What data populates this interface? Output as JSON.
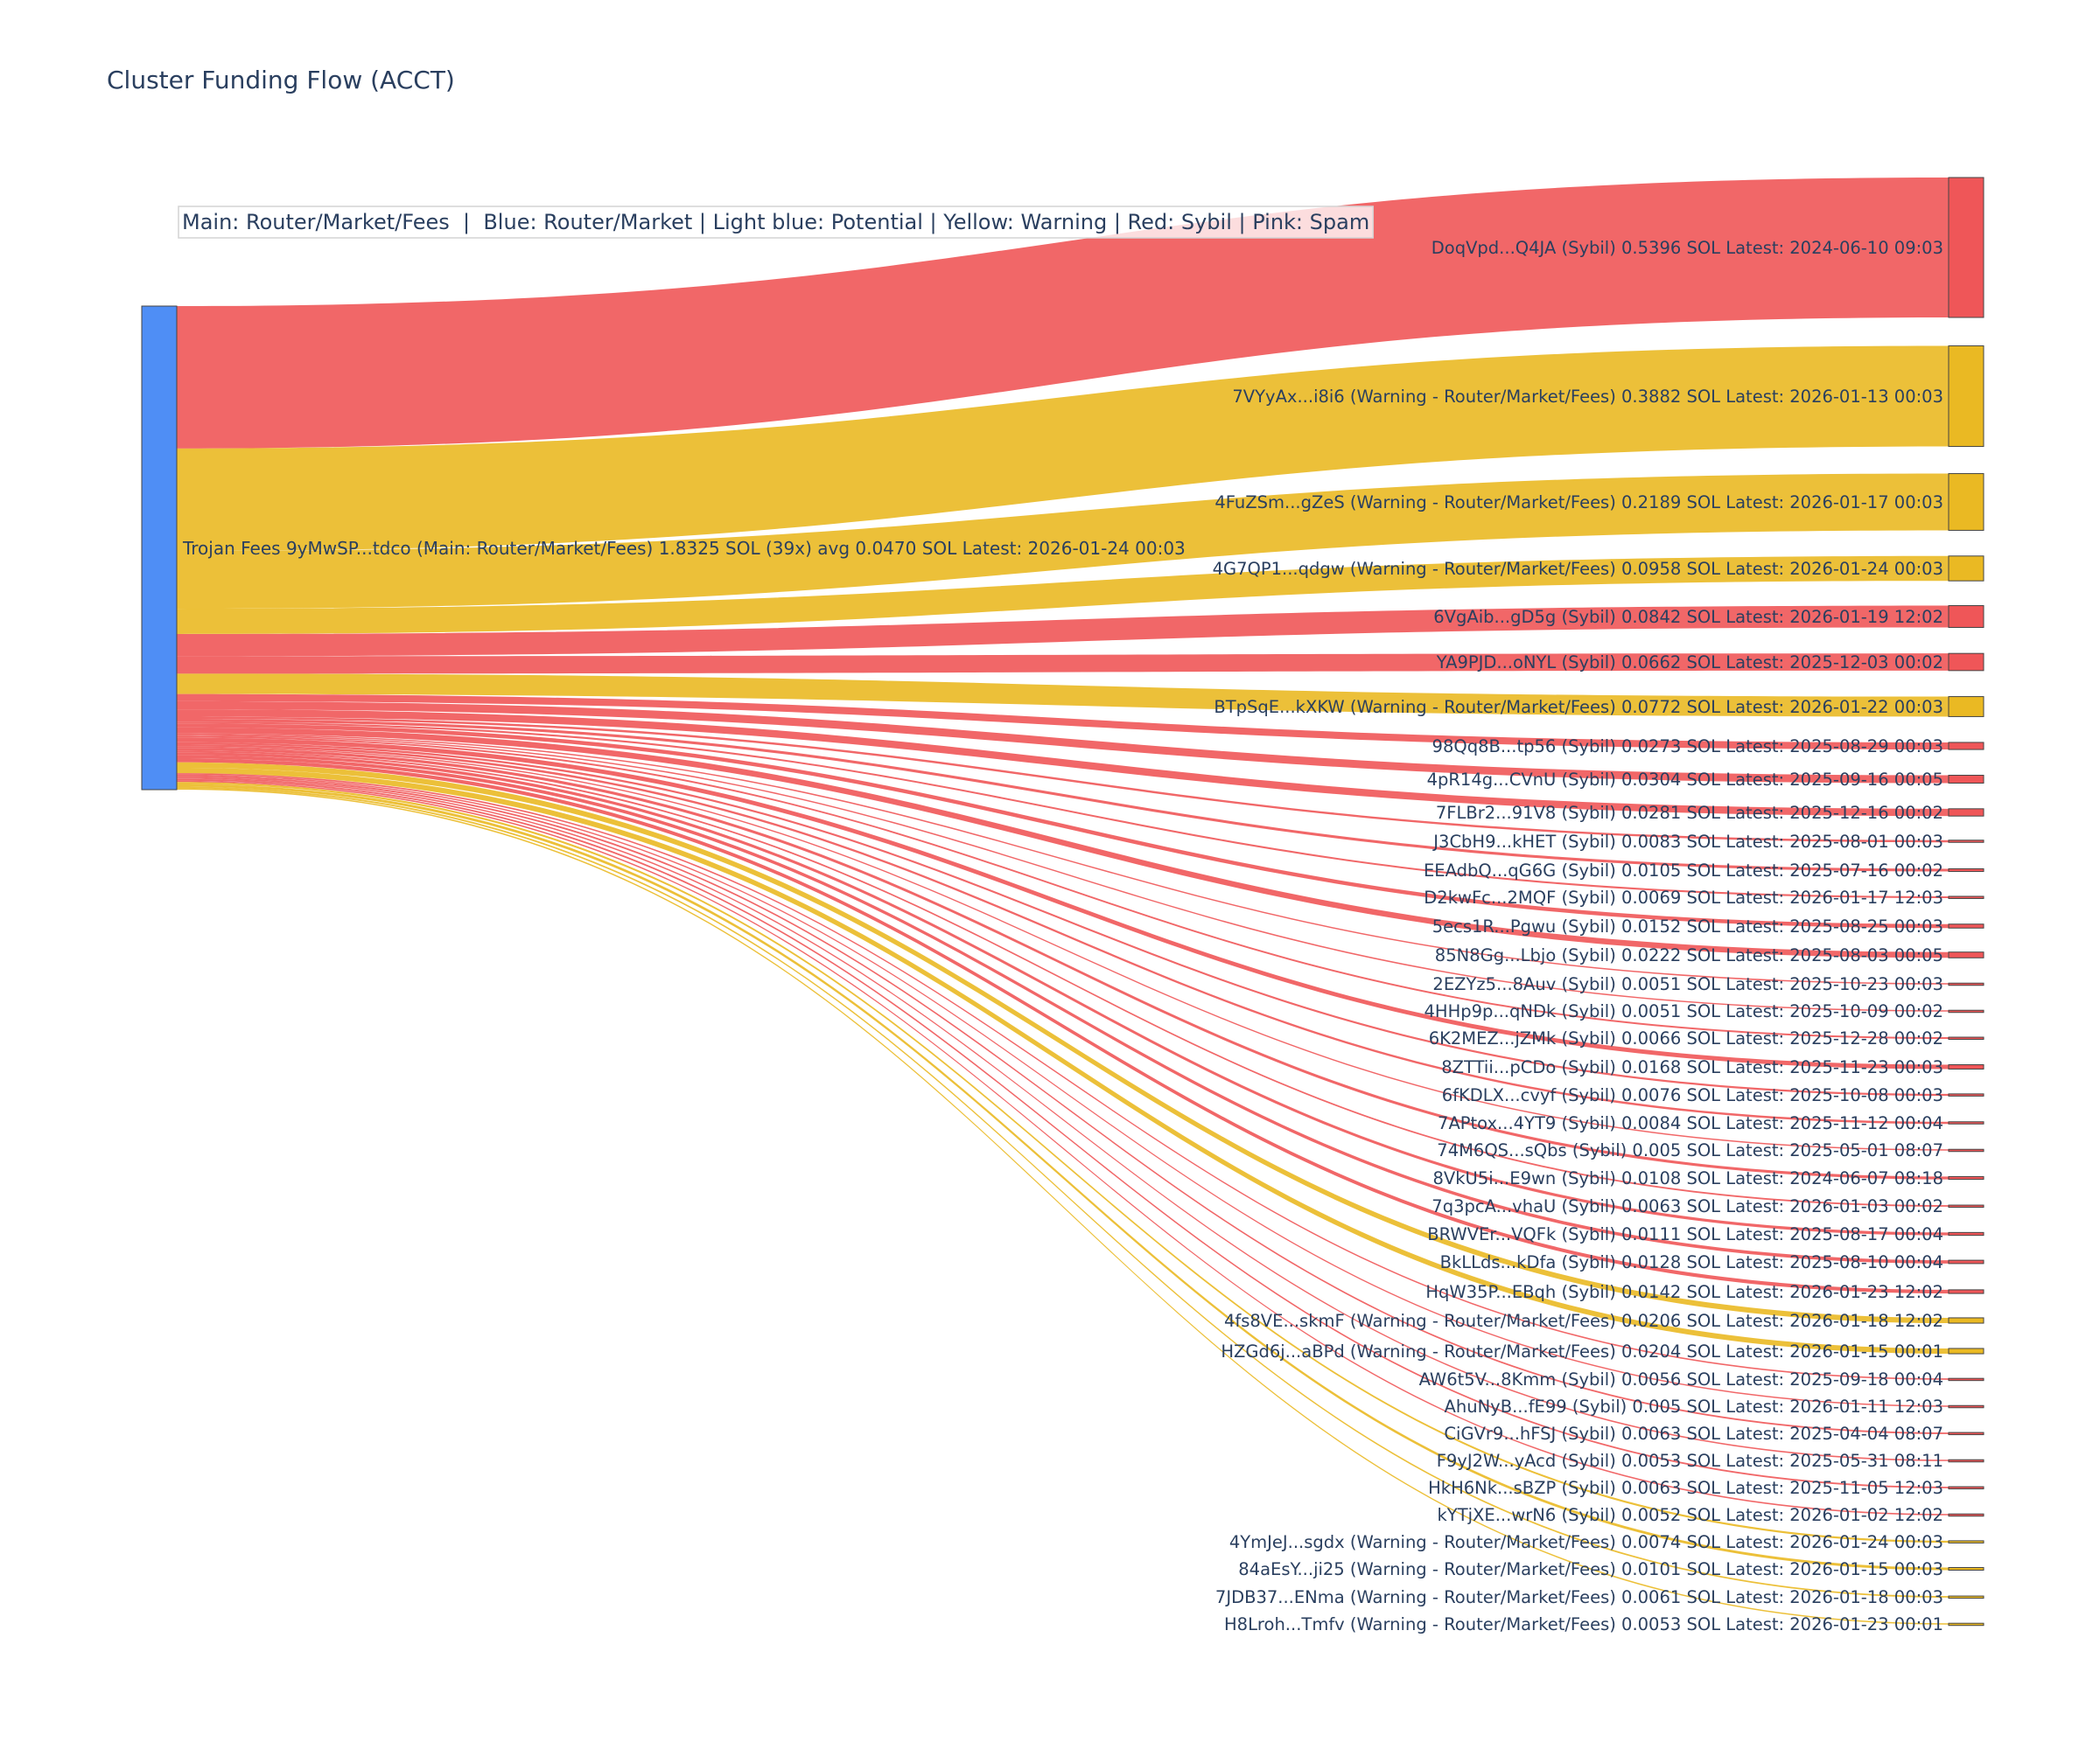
{
  "title": "Cluster Funding Flow (ACCT)",
  "legend_note": "Main: Router/Market/Fees  |  Blue: Router/Market | Light blue: Potential | Yellow: Warning | Red: Sybil | Pink: Spam",
  "colors": {
    "source": "#4f8ef5",
    "sybil": "#ef5658",
    "warning": "#eab923",
    "background": "#ffffff",
    "text": "#2a3f5f"
  },
  "chart_data": {
    "type": "sankey",
    "source": {
      "label": "Trojan Fees 9yMwSP...tdco (Main: Router/Market/Fees) 1.8325 SOL (39x) avg 0.0470 SOL Latest: 2026-01-24 00:03",
      "value": 1.8325,
      "count": 39
    },
    "targets": [
      {
        "label": "DoqVpd...Q4JA (Sybil) 0.5396 SOL Latest: 2024-06-10 09:03",
        "value": 0.5396,
        "type": "sybil"
      },
      {
        "label": "7VYyAx...i8i6 (Warning - Router/Market/Fees) 0.3882 SOL Latest: 2026-01-13 00:03",
        "value": 0.3882,
        "type": "warning"
      },
      {
        "label": "4FuZSm...gZeS (Warning - Router/Market/Fees) 0.2189 SOL Latest: 2026-01-17 00:03",
        "value": 0.2189,
        "type": "warning"
      },
      {
        "label": "4G7QP1...qdgw (Warning - Router/Market/Fees) 0.0958 SOL Latest: 2026-01-24 00:03",
        "value": 0.0958,
        "type": "warning"
      },
      {
        "label": "6VgAib...gD5g (Sybil) 0.0842 SOL Latest: 2026-01-19 12:02",
        "value": 0.0842,
        "type": "sybil"
      },
      {
        "label": "YA9PJD...oNYL (Sybil) 0.0662 SOL Latest: 2025-12-03 00:02",
        "value": 0.0662,
        "type": "sybil"
      },
      {
        "label": "BTpSqE...kXKW (Warning - Router/Market/Fees) 0.0772 SOL Latest: 2026-01-22 00:03",
        "value": 0.0772,
        "type": "warning"
      },
      {
        "label": "98Qq8B...tp56 (Sybil) 0.0273 SOL Latest: 2025-08-29 00:03",
        "value": 0.0273,
        "type": "sybil"
      },
      {
        "label": "4pR14g...CVnU (Sybil) 0.0304 SOL Latest: 2025-09-16 00:05",
        "value": 0.0304,
        "type": "sybil"
      },
      {
        "label": "7FLBr2...91V8 (Sybil) 0.0281 SOL Latest: 2025-12-16 00:02",
        "value": 0.0281,
        "type": "sybil"
      },
      {
        "label": "J3CbH9...kHET (Sybil) 0.0083 SOL Latest: 2025-08-01 00:03",
        "value": 0.0083,
        "type": "sybil"
      },
      {
        "label": "EEAdbQ...qG6G (Sybil) 0.0105 SOL Latest: 2025-07-16 00:02",
        "value": 0.0105,
        "type": "sybil"
      },
      {
        "label": "D2kwFc...2MQF (Sybil) 0.0069 SOL Latest: 2026-01-17 12:03",
        "value": 0.0069,
        "type": "sybil"
      },
      {
        "label": "5ecs1R...Pgwu (Sybil) 0.0152 SOL Latest: 2025-08-25 00:03",
        "value": 0.0152,
        "type": "sybil"
      },
      {
        "label": "85N8Gg...Lbjo (Sybil) 0.0222 SOL Latest: 2025-08-03 00:05",
        "value": 0.0222,
        "type": "sybil"
      },
      {
        "label": "2EZYz5...8Auv (Sybil) 0.0051 SOL Latest: 2025-10-23 00:03",
        "value": 0.0051,
        "type": "sybil"
      },
      {
        "label": "4HHp9p...qNDk (Sybil) 0.0051 SOL Latest: 2025-10-09 00:02",
        "value": 0.0051,
        "type": "sybil"
      },
      {
        "label": "6K2MEZ...jZMk (Sybil) 0.0066 SOL Latest: 2025-12-28 00:02",
        "value": 0.0066,
        "type": "sybil"
      },
      {
        "label": "8ZTTii...pCDo (Sybil) 0.0168 SOL Latest: 2025-11-23 00:03",
        "value": 0.0168,
        "type": "sybil"
      },
      {
        "label": "6fKDLX...cvyf (Sybil) 0.0076 SOL Latest: 2025-10-08 00:03",
        "value": 0.0076,
        "type": "sybil"
      },
      {
        "label": "7APtox...4YT9 (Sybil) 0.0084 SOL Latest: 2025-11-12 00:04",
        "value": 0.0084,
        "type": "sybil"
      },
      {
        "label": "74M6QS...sQbs (Sybil) 0.005 SOL Latest: 2025-05-01 08:07",
        "value": 0.005,
        "type": "sybil"
      },
      {
        "label": "8VkU5i...E9wn (Sybil) 0.0108 SOL Latest: 2024-06-07 08:18",
        "value": 0.0108,
        "type": "sybil"
      },
      {
        "label": "7q3pcA...vhaU (Sybil) 0.0063 SOL Latest: 2026-01-03 00:02",
        "value": 0.0063,
        "type": "sybil"
      },
      {
        "label": "BRWVEr...VQFk (Sybil) 0.0111 SOL Latest: 2025-08-17 00:04",
        "value": 0.0111,
        "type": "sybil"
      },
      {
        "label": "BkLLds...kDfa (Sybil) 0.0128 SOL Latest: 2025-08-10 00:04",
        "value": 0.0128,
        "type": "sybil"
      },
      {
        "label": "HqW35P...EBqh (Sybil) 0.0142 SOL Latest: 2026-01-23 12:02",
        "value": 0.0142,
        "type": "sybil"
      },
      {
        "label": "4fs8VE...skmF (Warning - Router/Market/Fees) 0.0206 SOL Latest: 2026-01-18 12:02",
        "value": 0.0206,
        "type": "warning"
      },
      {
        "label": "HZGd6j...aBPd (Warning - Router/Market/Fees) 0.0204 SOL Latest: 2026-01-15 00:01",
        "value": 0.0204,
        "type": "warning"
      },
      {
        "label": "AW6t5V...8Kmm (Sybil) 0.0056 SOL Latest: 2025-09-18 00:04",
        "value": 0.0056,
        "type": "sybil"
      },
      {
        "label": "AhuNyB...fE99 (Sybil) 0.005 SOL Latest: 2026-01-11 12:03",
        "value": 0.005,
        "type": "sybil"
      },
      {
        "label": "CiGVr9...hFSJ (Sybil) 0.0063 SOL Latest: 2025-04-04 08:07",
        "value": 0.0063,
        "type": "sybil"
      },
      {
        "label": "F9yJ2W...yAcd (Sybil) 0.0053 SOL Latest: 2025-05-31 08:11",
        "value": 0.0053,
        "type": "sybil"
      },
      {
        "label": "HkH6Nk...sBZP (Sybil) 0.0063 SOL Latest: 2025-11-05 12:03",
        "value": 0.0063,
        "type": "sybil"
      },
      {
        "label": "kYTjXE...wrN6 (Sybil) 0.0052 SOL Latest: 2026-01-02 12:02",
        "value": 0.0052,
        "type": "sybil"
      },
      {
        "label": "4YmJeJ...sgdx (Warning - Router/Market/Fees) 0.0074 SOL Latest: 2026-01-24 00:03",
        "value": 0.0074,
        "type": "warning"
      },
      {
        "label": "84aEsY...ji25 (Warning - Router/Market/Fees) 0.0101 SOL Latest: 2026-01-15 00:03",
        "value": 0.0101,
        "type": "warning"
      },
      {
        "label": "7JDB37...ENma (Warning - Router/Market/Fees) 0.0061 SOL Latest: 2026-01-18 00:03",
        "value": 0.0061,
        "type": "warning"
      },
      {
        "label": "H8Lroh...Tmfv (Warning - Router/Market/Fees) 0.0053 SOL Latest: 2026-01-23 00:01",
        "value": 0.0053,
        "type": "warning"
      }
    ]
  }
}
